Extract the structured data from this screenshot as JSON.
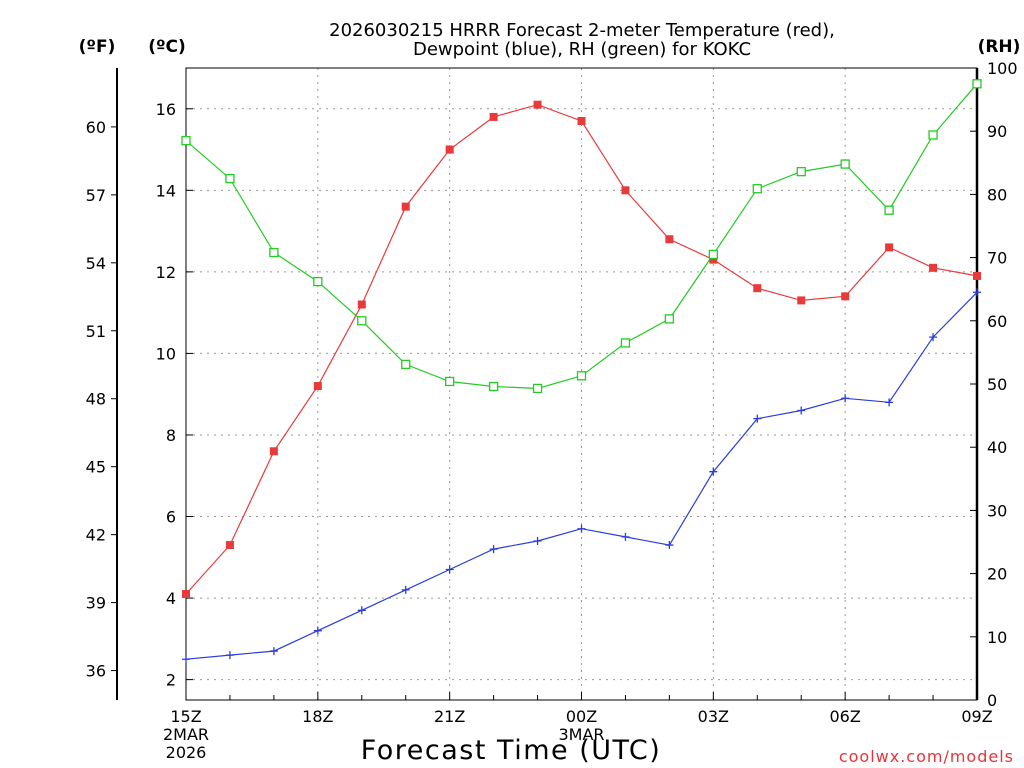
{
  "chart_data": {
    "type": "line",
    "title": "2026030215 HRRR Forecast 2-meter Temperature (red),",
    "title2": "Dewpoint (blue), RH (green) for KOKC",
    "xlabel": "Forecast Time (UTC)",
    "unit_f": "(ºF)",
    "unit_c": "(ºC)",
    "unit_rh": "(RH)",
    "credit": "coolwx.com/models",
    "x": [
      "15Z",
      "16Z",
      "17Z",
      "18Z",
      "19Z",
      "20Z",
      "21Z",
      "22Z",
      "23Z",
      "00Z",
      "01Z",
      "02Z",
      "03Z",
      "04Z",
      "05Z",
      "06Z",
      "07Z",
      "08Z",
      "09Z"
    ],
    "x_ticks": [
      {
        "label": "15Z",
        "sub": [
          "2MAR",
          "2026"
        ]
      },
      {
        "label": "18Z",
        "sub": []
      },
      {
        "label": "21Z",
        "sub": []
      },
      {
        "label": "00Z",
        "sub": [
          "3MAR"
        ]
      },
      {
        "label": "03Z",
        "sub": []
      },
      {
        "label": "06Z",
        "sub": []
      },
      {
        "label": "09Z",
        "sub": []
      }
    ],
    "ylim_c": [
      1.5,
      17.0
    ],
    "yticks_c": [
      2,
      4,
      6,
      8,
      10,
      12,
      14,
      16
    ],
    "yticks_f": [
      36,
      39,
      42,
      45,
      48,
      51,
      54,
      57,
      60
    ],
    "ylim_rh": [
      0,
      100
    ],
    "yticks_rh": [
      0,
      10,
      20,
      30,
      40,
      50,
      60,
      70,
      80,
      90,
      100
    ],
    "grid": true,
    "series": [
      {
        "key": "temperature",
        "color": "#e83a3a",
        "marker": "filled-square",
        "values": [
          4.1,
          5.3,
          7.6,
          9.2,
          11.2,
          13.6,
          15.0,
          15.8,
          16.1,
          15.7,
          14.0,
          12.8,
          12.3,
          11.6,
          11.3,
          11.4,
          12.6,
          12.1,
          11.9
        ]
      },
      {
        "key": "dewpoint",
        "color": "#2a3ddb",
        "marker": "plus",
        "values": [
          2.5,
          2.6,
          2.7,
          3.2,
          3.7,
          4.2,
          4.7,
          5.2,
          5.4,
          5.7,
          5.5,
          5.3,
          7.1,
          8.4,
          8.6,
          8.9,
          8.8,
          10.4,
          11.5
        ]
      },
      {
        "key": "rh",
        "color": "#22cc22",
        "marker": "open-square",
        "values": [
          88.5,
          82.5,
          70.8,
          66.2,
          60.0,
          53.1,
          50.4,
          49.6,
          49.3,
          51.3,
          56.5,
          60.3,
          70.5,
          80.9,
          83.6,
          84.8,
          77.5,
          89.4,
          97.5
        ]
      }
    ]
  }
}
